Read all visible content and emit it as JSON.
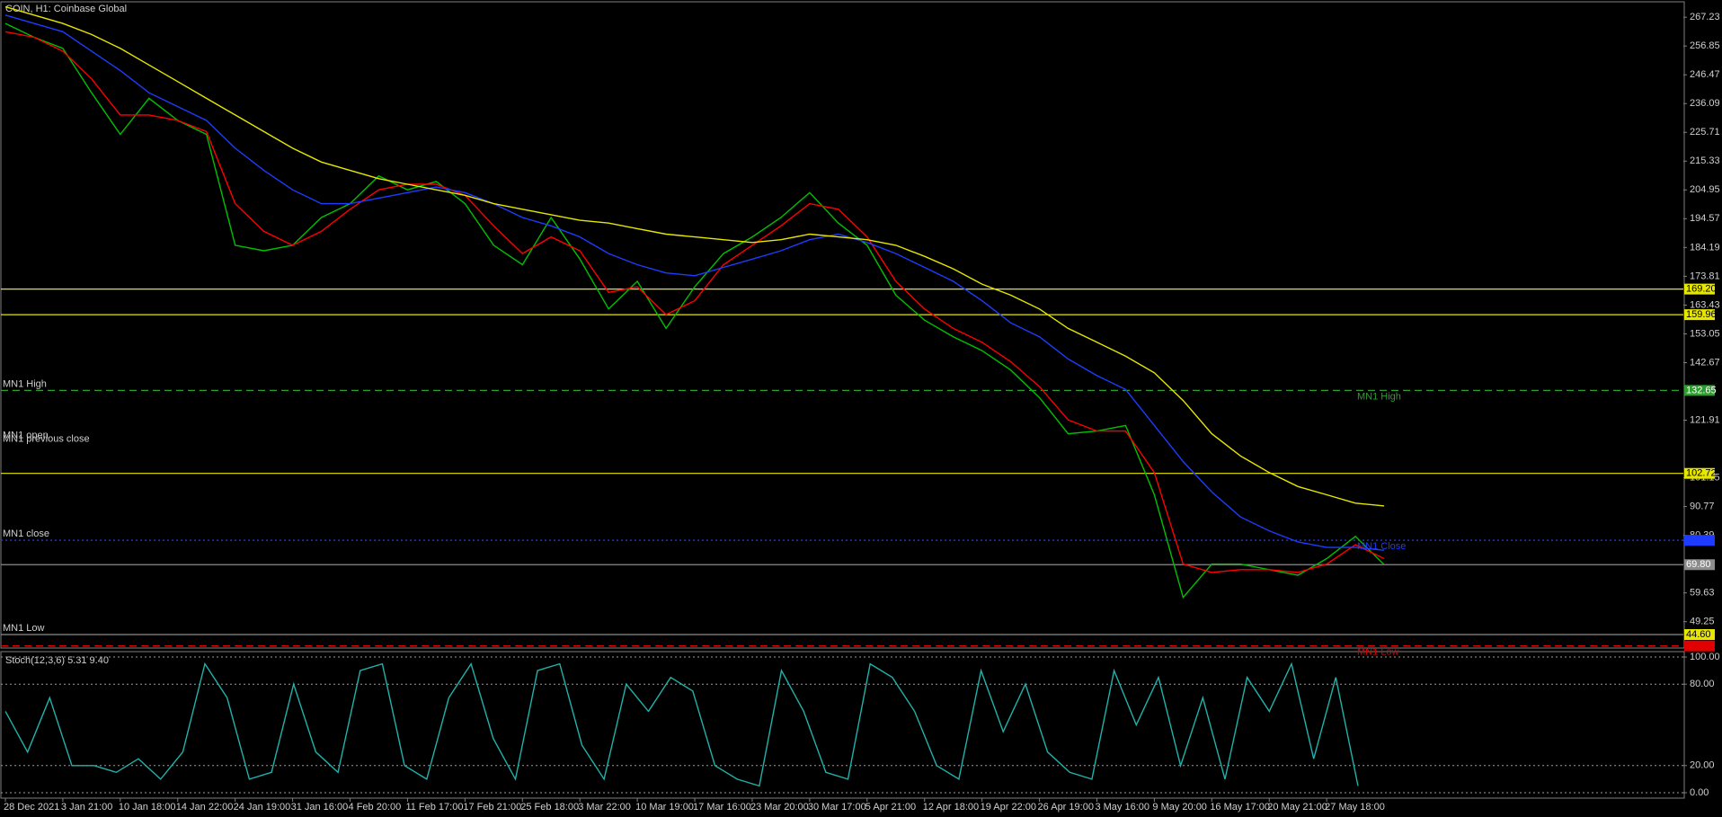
{
  "chart_data": [
    {
      "type": "line",
      "title": "COIN, H1: Coinbase Global",
      "categories": [
        "28 Dec 2021",
        null,
        "3 Jan 21:00",
        null,
        "10 Jan 18:00",
        null,
        "14 Jan 22:00",
        null,
        "24 Jan 19:00",
        null,
        "31 Jan 16:00",
        null,
        "4 Feb 20:00",
        null,
        "11 Feb 17:00",
        null,
        "17 Feb 21:00",
        null,
        "25 Feb 18:00",
        null,
        "3 Mar 22:00",
        null,
        "10 Mar 19:00",
        null,
        "17 Mar 16:00",
        null,
        "23 Mar 20:00",
        null,
        "30 Mar 17:00",
        null,
        "5 Apr 21:00",
        null,
        "12 Apr 18:00",
        null,
        "19 Apr 22:00",
        null,
        "26 Apr 19:00",
        null,
        "3 May 16:00",
        null,
        "9 May 20:00",
        null,
        "16 May 17:00",
        null,
        "20 May 21:00",
        null,
        "27 May 18:00",
        null,
        null
      ],
      "series": [
        {
          "color": "#00c000",
          "values": [
            265,
            260,
            256,
            240,
            225,
            238,
            230,
            225,
            185,
            183,
            185,
            195,
            200,
            210,
            205,
            208,
            200,
            185,
            178,
            195,
            180,
            162,
            172,
            155,
            170,
            182,
            188,
            195,
            204,
            193,
            185,
            167,
            158,
            152,
            147,
            140,
            130,
            117,
            118,
            120,
            95,
            58,
            70,
            70,
            68,
            66,
            72,
            80,
            69.8
          ]
        },
        {
          "color": "#ff0000",
          "values": [
            262,
            260,
            255,
            245,
            232,
            232,
            230,
            226,
            200,
            190,
            185,
            190,
            198,
            205,
            207,
            207,
            203,
            192,
            182,
            188,
            183,
            168,
            170,
            160,
            165,
            178,
            185,
            192,
            200,
            198,
            188,
            172,
            162,
            155,
            150,
            143,
            134,
            122,
            118,
            118,
            103,
            70,
            67,
            68,
            68,
            67,
            70,
            77,
            72
          ]
        },
        {
          "color": "#1e3cff",
          "values": [
            268,
            265,
            262,
            255,
            248,
            240,
            235,
            230,
            220,
            212,
            205,
            200,
            200,
            202,
            204,
            206,
            204,
            200,
            195,
            192,
            188,
            182,
            178,
            175,
            174,
            177,
            180,
            183,
            187,
            189,
            186,
            182,
            177,
            172,
            165,
            157,
            152,
            144,
            138,
            133,
            120,
            107,
            96,
            87,
            82,
            78,
            76,
            76,
            75
          ]
        },
        {
          "color": "#e6e600",
          "values": [
            271,
            268,
            265,
            261,
            256,
            250,
            244,
            238,
            232,
            226,
            220,
            215,
            212,
            209,
            207,
            205,
            203,
            200,
            198,
            196,
            194,
            193,
            191,
            189,
            188,
            187,
            186,
            187,
            189,
            188,
            187,
            185,
            181,
            176.5,
            171,
            167,
            162,
            155,
            150,
            145,
            139,
            129,
            117,
            109,
            103,
            98,
            95,
            92,
            91
          ]
        }
      ],
      "ylim": [
        39.74,
        272.8
      ],
      "yticks": [
        267.23,
        256.85,
        246.47,
        236.09,
        225.71,
        215.33,
        204.95,
        194.57,
        184.19,
        173.81,
        163.43,
        153.05,
        142.67,
        121.91,
        101.15,
        90.77,
        80.39,
        59.63,
        49.25
      ],
      "levels": [
        {
          "value": 169.2,
          "label": "169.20",
          "color": "#e6e600",
          "dash": "none"
        },
        {
          "value": 159.96,
          "label": "159.96",
          "color": "#e6e600",
          "dash": "none"
        },
        {
          "value": 132.65,
          "label": "132.65",
          "color": "#2e9e2e",
          "dash": "8 5",
          "left_text": "MN1 High",
          "right_text": "MN1 High"
        },
        {
          "value": 102.72,
          "label": "102.72",
          "color": "#e6e600",
          "dash": "none"
        },
        {
          "value": 78.6,
          "color": "#1e3cff",
          "dash": "2 3",
          "left_text": "MN1 close",
          "right_text": "MN1 Close"
        },
        {
          "value": 69.8,
          "label": "69.80",
          "color": "#8c8c8c",
          "dash": "none"
        },
        {
          "value": 44.6,
          "label": "44.60",
          "color": "#e6e600",
          "line_color": "#8c8c8c",
          "dash": "none",
          "left_text": "MN1 Low"
        },
        {
          "value": 40.5,
          "color": "#e00000",
          "dash": "8 5",
          "right_text": "MN1 Low"
        }
      ],
      "annotations": [
        {
          "value": 115.1,
          "texts": [
            "MN1 open",
            "MN1 previous close"
          ]
        }
      ]
    },
    {
      "type": "line",
      "title": "Stoch(12,3,6) 5.31 9.40",
      "series": [
        {
          "color": "#20b2aa",
          "values": [
            60,
            30,
            70,
            20,
            20,
            15,
            25,
            10,
            30,
            95,
            70,
            10,
            15,
            80,
            30,
            15,
            90,
            95,
            20,
            10,
            70,
            95,
            40,
            10,
            90,
            95,
            35,
            10,
            80,
            60,
            85,
            75,
            20,
            10,
            5,
            90,
            60,
            15,
            10,
            95,
            85,
            60,
            20,
            10,
            90,
            45,
            80,
            30,
            15,
            10,
            90,
            50,
            85,
            20,
            70,
            10,
            85,
            60,
            95,
            25,
            85,
            5
          ]
        }
      ],
      "ylim": [
        -4,
        104
      ],
      "yticks": [
        {
          "value": 100,
          "label": "100.00"
        },
        {
          "value": 80,
          "label": "80.00"
        },
        {
          "value": 20,
          "label": "20.00"
        },
        {
          "value": 0,
          "label": "0.00"
        }
      ],
      "grid": true
    }
  ]
}
